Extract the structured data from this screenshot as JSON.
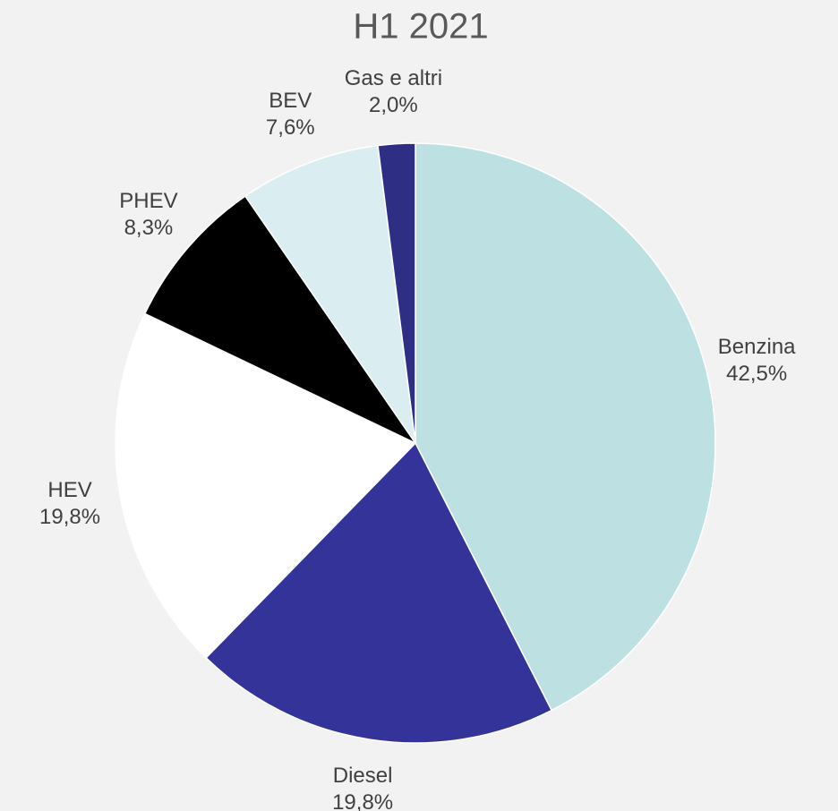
{
  "chart_data": {
    "type": "pie",
    "title": "H1 2021",
    "categories": [
      "Benzina",
      "Diesel",
      "HEV",
      "PHEV",
      "BEV",
      "Gas e altri"
    ],
    "values": [
      42.5,
      19.8,
      19.8,
      8.3,
      7.6,
      2.0
    ],
    "value_labels": [
      "42,5%",
      "19,8%",
      "19,8%",
      "8,3%",
      "7,6%",
      "2,0%"
    ],
    "colors": [
      "#bde0e3",
      "#343399",
      "#ffffff",
      "#000000",
      "#daedf0",
      "#2e2e85"
    ]
  }
}
